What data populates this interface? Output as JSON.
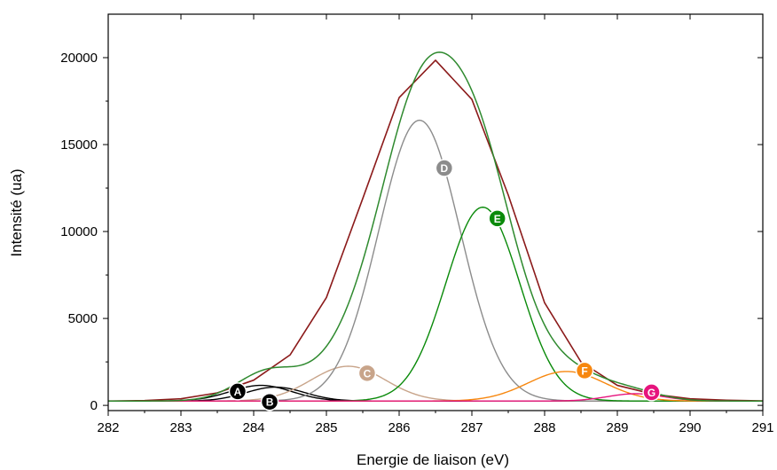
{
  "chart_data": {
    "type": "line",
    "xlabel": "Energie de liaison (eV)",
    "ylabel": "Intensité (ua)",
    "xlim": [
      282,
      291
    ],
    "ylim": [
      -300,
      22500
    ],
    "x_ticks": [
      "282",
      "283",
      "284",
      "285",
      "286",
      "287",
      "288",
      "289",
      "290",
      "291"
    ],
    "y_ticks": [
      "0",
      "5000",
      "10000",
      "15000",
      "20000"
    ],
    "grid": false,
    "background": 250,
    "colors": {
      "A": "#000000",
      "B": "#000000",
      "C": "#c8a48a",
      "D": "#8c8c8c",
      "E": "#0a8a0a",
      "F": "#f7870f",
      "G": "#e6147d",
      "raw": "#8b1a1a",
      "envelope": "#2f8a2f",
      "baseline": "#e6147d"
    },
    "series": [
      {
        "id": "raw",
        "type": "measured",
        "x": [
          282,
          282.5,
          283,
          283.5,
          284,
          284.5,
          285,
          285.5,
          286,
          286.5,
          287,
          287.5,
          288,
          288.5,
          289,
          289.5,
          290,
          290.5,
          291
        ],
        "y": [
          250,
          280,
          380,
          720,
          1450,
          2900,
          6200,
          11900,
          17700,
          19850,
          17600,
          12100,
          5900,
          2500,
          1150,
          640,
          380,
          300,
          260
        ]
      },
      {
        "id": "A",
        "label": "A",
        "center": 284.1,
        "amplitude": 900,
        "fwhm": 1.0
      },
      {
        "id": "B",
        "label": "B",
        "center": 284.3,
        "amplitude": 800,
        "fwhm": 0.95
      },
      {
        "id": "C",
        "label": "C",
        "center": 285.3,
        "amplitude": 2000,
        "fwhm": 1.2
      },
      {
        "id": "D",
        "label": "D",
        "center": 286.28,
        "amplitude": 16150,
        "fwhm": 1.32
      },
      {
        "id": "E",
        "label": "E",
        "center": 287.15,
        "amplitude": 11150,
        "fwhm": 1.2
      },
      {
        "id": "F",
        "label": "F",
        "center": 288.3,
        "amplitude": 1700,
        "fwhm": 1.25
      },
      {
        "id": "G",
        "label": "G",
        "center": 289.25,
        "amplitude": 420,
        "fwhm": 0.9
      }
    ],
    "markers": [
      {
        "label": "A",
        "x": 283.78,
        "y": 800
      },
      {
        "label": "B",
        "x": 284.22,
        "y": 200
      },
      {
        "label": "C",
        "x": 285.56,
        "y": 1850
      },
      {
        "label": "D",
        "x": 286.62,
        "y": 13650
      },
      {
        "label": "E",
        "x": 287.35,
        "y": 10750
      },
      {
        "label": "F",
        "x": 288.55,
        "y": 2000
      },
      {
        "label": "G",
        "x": 289.47,
        "y": 750
      }
    ]
  }
}
